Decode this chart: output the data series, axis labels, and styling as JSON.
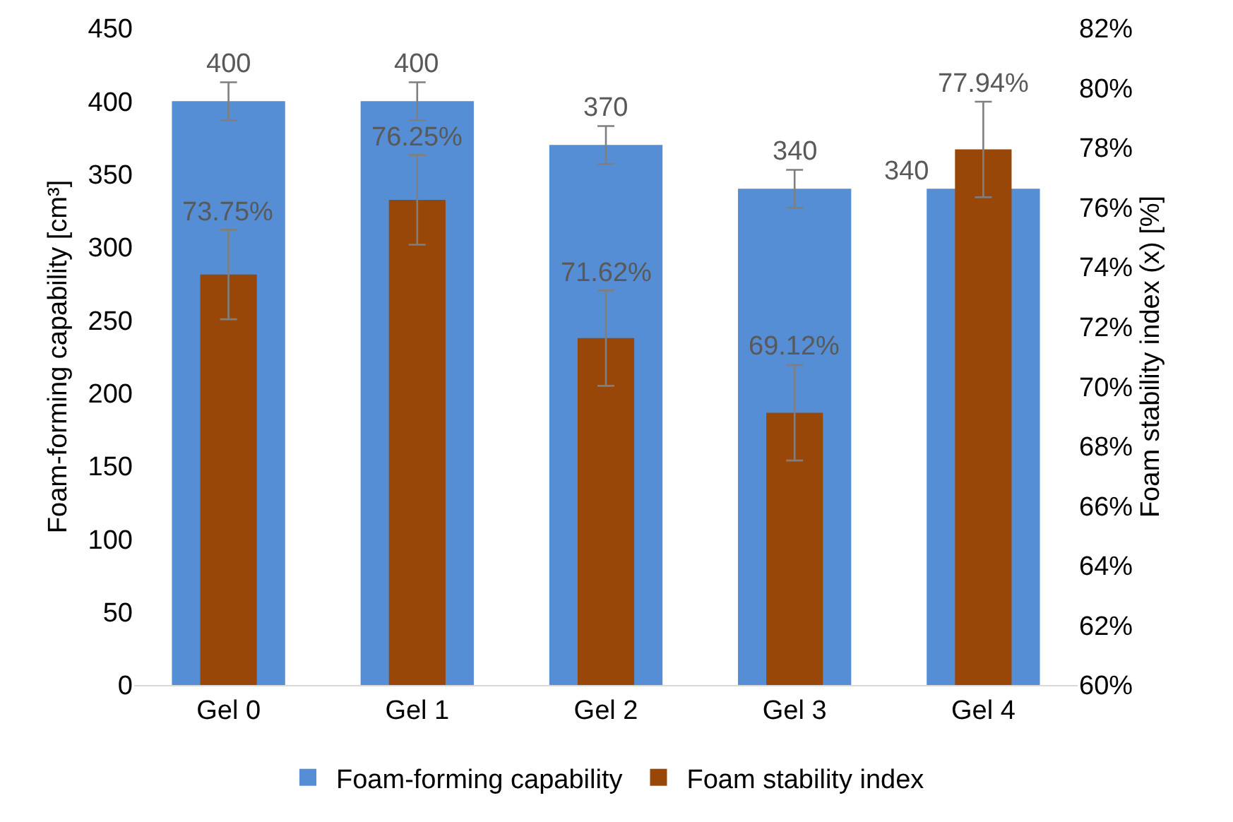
{
  "chart_data": {
    "type": "bar",
    "categories": [
      "Gel 0",
      "Gel 1",
      "Gel 2",
      "Gel 3",
      "Gel 4"
    ],
    "ylabel": "Foam-forming capability [cm³]",
    "y2label": "Foam stability index (x) [%]",
    "ylim": [
      0,
      450
    ],
    "yticks": [
      0,
      50,
      100,
      150,
      200,
      250,
      300,
      350,
      400,
      450
    ],
    "y2lim": [
      60,
      82
    ],
    "y2ticks": [
      {
        "value": 60,
        "label": "60%"
      },
      {
        "value": 62,
        "label": "62%"
      },
      {
        "value": 64,
        "label": "64%"
      },
      {
        "value": 66,
        "label": "66%"
      },
      {
        "value": 68,
        "label": "68%"
      },
      {
        "value": 70,
        "label": "70%"
      },
      {
        "value": 72,
        "label": "72%"
      },
      {
        "value": 74,
        "label": "74%"
      },
      {
        "value": 76,
        "label": "76%"
      },
      {
        "value": 78,
        "label": "78%"
      },
      {
        "value": 80,
        "label": "80%"
      },
      {
        "value": 82,
        "label": "82%"
      }
    ],
    "series": [
      {
        "name": "Foam-forming capability",
        "color": "#558ed5",
        "values": [
          400,
          400,
          370,
          340,
          340
        ],
        "errors": [
          13,
          13,
          13,
          13,
          null
        ],
        "value_labels": [
          "400",
          "400",
          "370",
          "340",
          "340"
        ]
      },
      {
        "name": "Foam stability index",
        "color": "#994708",
        "axis": "y2",
        "values": [
          73.75,
          76.25,
          71.62,
          69.12,
          77.94
        ],
        "errors": [
          1.5,
          1.5,
          1.6,
          1.6,
          1.6
        ],
        "value_labels": [
          "73.75%",
          "76.25%",
          "71.62%",
          "69.12%",
          "77.94%"
        ]
      }
    ],
    "grid": false,
    "legend": "bottom"
  }
}
